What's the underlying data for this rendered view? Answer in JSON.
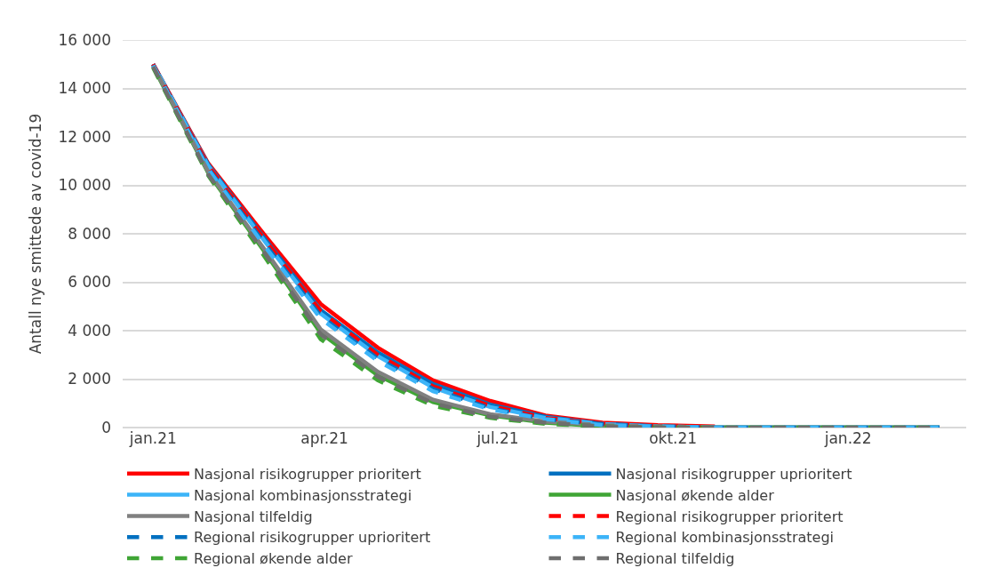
{
  "chart_data": {
    "type": "line",
    "ylabel": "Antall nye smittede av covid-19",
    "x": [
      "2021-01-01",
      "2021-01-30",
      "2021-03-01",
      "2021-03-30",
      "2021-04-29",
      "2021-05-28",
      "2021-06-27",
      "2021-07-26",
      "2021-08-25",
      "2021-09-23",
      "2021-10-23",
      "2021-11-21",
      "2021-12-21",
      "2022-01-19",
      "2022-02-18"
    ],
    "series": [
      {
        "name": "Nasjonal risikogrupper prioritert",
        "color": "#ff0000",
        "line_style": "solid",
        "values": [
          15000,
          10900,
          7900,
          5100,
          3300,
          1950,
          1100,
          500,
          200,
          100,
          50,
          null,
          null,
          null,
          null
        ]
      },
      {
        "name": "Nasjonal risikogrupper uprioritert",
        "color": "#0070c0",
        "line_style": "solid",
        "values": [
          15000,
          10850,
          7750,
          4850,
          3100,
          1800,
          950,
          450,
          150,
          50,
          0,
          0,
          0,
          0,
          0
        ]
      },
      {
        "name": "Nasjonal kombinasjonsstrategi",
        "color": "#3cb4f8",
        "line_style": "solid",
        "values": [
          15000,
          10800,
          7650,
          4700,
          2950,
          1650,
          850,
          400,
          150,
          50,
          0,
          0,
          0,
          0,
          0
        ]
      },
      {
        "name": "Nasjonal økende alder",
        "color": "#3fa535",
        "line_style": "solid",
        "values": [
          14900,
          10500,
          7200,
          3900,
          2150,
          1050,
          500,
          200,
          50,
          0,
          0,
          0,
          0,
          0,
          0
        ]
      },
      {
        "name": "Nasjonal tilfeldig",
        "color": "#808080",
        "line_style": "solid",
        "values": [
          14950,
          10550,
          7300,
          4050,
          2300,
          1150,
          550,
          250,
          100,
          50,
          0,
          0,
          0,
          0,
          0
        ]
      },
      {
        "name": "Regional risikogrupper prioritert",
        "color": "#ff0000",
        "line_style": "dashed",
        "values": [
          15000,
          10800,
          7700,
          4800,
          3000,
          1700,
          900,
          400,
          150,
          50,
          0,
          null,
          null,
          null,
          null
        ]
      },
      {
        "name": "Regional risikogrupper uprioritert",
        "color": "#0070c0",
        "line_style": "dashed",
        "values": [
          14950,
          10700,
          7550,
          4600,
          2850,
          1600,
          800,
          350,
          150,
          50,
          0,
          0,
          0,
          0,
          0
        ]
      },
      {
        "name": "Regional kombinasjonsstrategi",
        "color": "#3cb4f8",
        "line_style": "dashed",
        "values": [
          14950,
          10650,
          7450,
          4500,
          2750,
          1500,
          750,
          350,
          100,
          50,
          0,
          0,
          0,
          0,
          0
        ]
      },
      {
        "name": "Regional økende alder",
        "color": "#3fa535",
        "line_style": "dashed",
        "values": [
          14850,
          10400,
          7000,
          3650,
          1950,
          900,
          400,
          150,
          50,
          0,
          0,
          0,
          0,
          0,
          0
        ]
      },
      {
        "name": "Regional tilfeldig",
        "color": "#6e6e6e",
        "line_style": "dashed",
        "values": [
          14900,
          10450,
          7150,
          3850,
          2100,
          1000,
          450,
          200,
          50,
          0,
          0,
          0,
          0,
          0,
          0
        ]
      }
    ],
    "xlim": [
      "2020-12-16",
      "2022-03-04"
    ],
    "xticks": [
      {
        "value": "2021-01-01",
        "label": "jan.21"
      },
      {
        "value": "2021-04-01",
        "label": "apr.21"
      },
      {
        "value": "2021-07-01",
        "label": "jul.21"
      },
      {
        "value": "2021-10-01",
        "label": "okt.21"
      },
      {
        "value": "2022-01-01",
        "label": "jan.22"
      }
    ],
    "ylim": [
      0,
      16000
    ],
    "yticks": [
      {
        "value": 0,
        "label": "0"
      },
      {
        "value": 2000,
        "label": "2 000"
      },
      {
        "value": 4000,
        "label": "4 000"
      },
      {
        "value": 6000,
        "label": "6 000"
      },
      {
        "value": 8000,
        "label": "8 000"
      },
      {
        "value": 10000,
        "label": "10 000"
      },
      {
        "value": 12000,
        "label": "12 000"
      },
      {
        "value": 14000,
        "label": "14 000"
      },
      {
        "value": 16000,
        "label": "16 000"
      }
    ],
    "grid": "y",
    "legend": "bottom",
    "marker": "none"
  }
}
